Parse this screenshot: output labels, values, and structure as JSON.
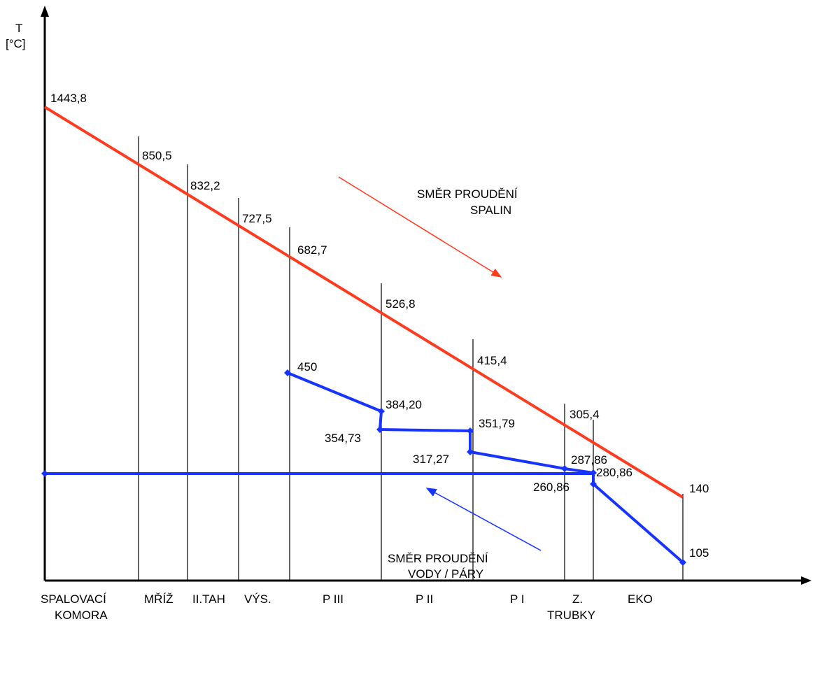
{
  "y_axis_label": {
    "line1": "T",
    "line2": "[°C]"
  },
  "flue_gas": {
    "label_line1": "SMĚR PROUDĚNÍ",
    "label_line2": "SPALIN",
    "color": "#ff3b1f",
    "values": [
      {
        "label": "1443,8",
        "value": 1443.8
      },
      {
        "label": "850,5",
        "value": 850.5
      },
      {
        "label": "832,2",
        "value": 832.2
      },
      {
        "label": "727,5",
        "value": 727.5
      },
      {
        "label": "682,7",
        "value": 682.7
      },
      {
        "label": "526,8",
        "value": 526.8
      },
      {
        "label": "415,4",
        "value": 415.4
      },
      {
        "label": "305,4",
        "value": 305.4
      },
      {
        "label": "140",
        "value": 140
      }
    ]
  },
  "water_steam": {
    "label_line1": "SMĚR PROUDĚNÍ",
    "label_line2": "VODY / PÁRY",
    "color": "#1733ff",
    "values": [
      {
        "label": "450",
        "value": 450
      },
      {
        "label": "384,20",
        "value": 384.2
      },
      {
        "label": "354,73",
        "value": 354.73
      },
      {
        "label": "351,79",
        "value": 351.79
      },
      {
        "label": "317,27",
        "value": 317.27
      },
      {
        "label": "287,86",
        "value": 287.86
      },
      {
        "label": "280,86",
        "value": 280.86
      },
      {
        "label": "260,86",
        "value": 260.86
      },
      {
        "label": "105",
        "value": 105
      }
    ]
  },
  "sections": [
    {
      "line1": "SPALOVACÍ",
      "line2": "KOMORA"
    },
    {
      "line1": "MŘÍŽ",
      "line2": ""
    },
    {
      "line1": "II.TAH",
      "line2": ""
    },
    {
      "line1": "VÝS.",
      "line2": ""
    },
    {
      "line1": "P III",
      "line2": ""
    },
    {
      "line1": "P II",
      "line2": ""
    },
    {
      "line1": "P I",
      "line2": ""
    },
    {
      "line1": "Z.",
      "line2": "TRUBKY"
    },
    {
      "line1": "EKO",
      "line2": ""
    }
  ]
}
